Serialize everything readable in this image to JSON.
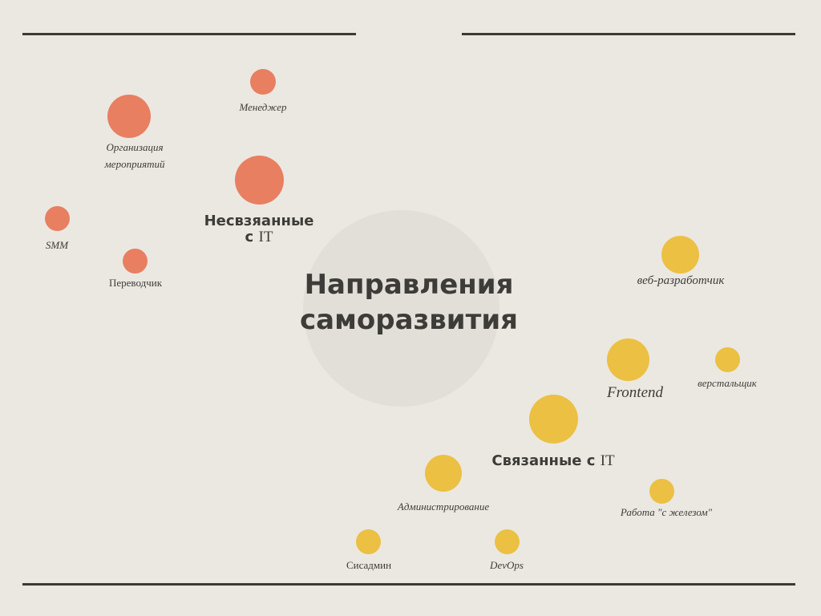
{
  "colors": {
    "background": "#ebe8e1",
    "orange": "#e87f61",
    "yellow": "#ebc043",
    "rule": "#3b3a35",
    "center": "#e2dfd9"
  },
  "center": {
    "line1": "Направления",
    "line2": "саморазвития"
  },
  "unrelated": {
    "heading_bold": "Несвзяанные",
    "heading_c": "с",
    "heading_it": "IT",
    "manager": "Менеджер",
    "events_line1": "Организация",
    "events_line2": "мероприятий",
    "smm": "SMM",
    "translator": "Переводчик"
  },
  "related": {
    "heading_bold": "Связанные с",
    "heading_it": "IT",
    "web_dev": "веб-разработчик",
    "frontend": "Frontend",
    "layout": "верстальщик",
    "admin": "Администрирование",
    "hardware": "Работа \"с железом\"",
    "sysadmin": "Сисадмин",
    "devops": "DevOps"
  }
}
